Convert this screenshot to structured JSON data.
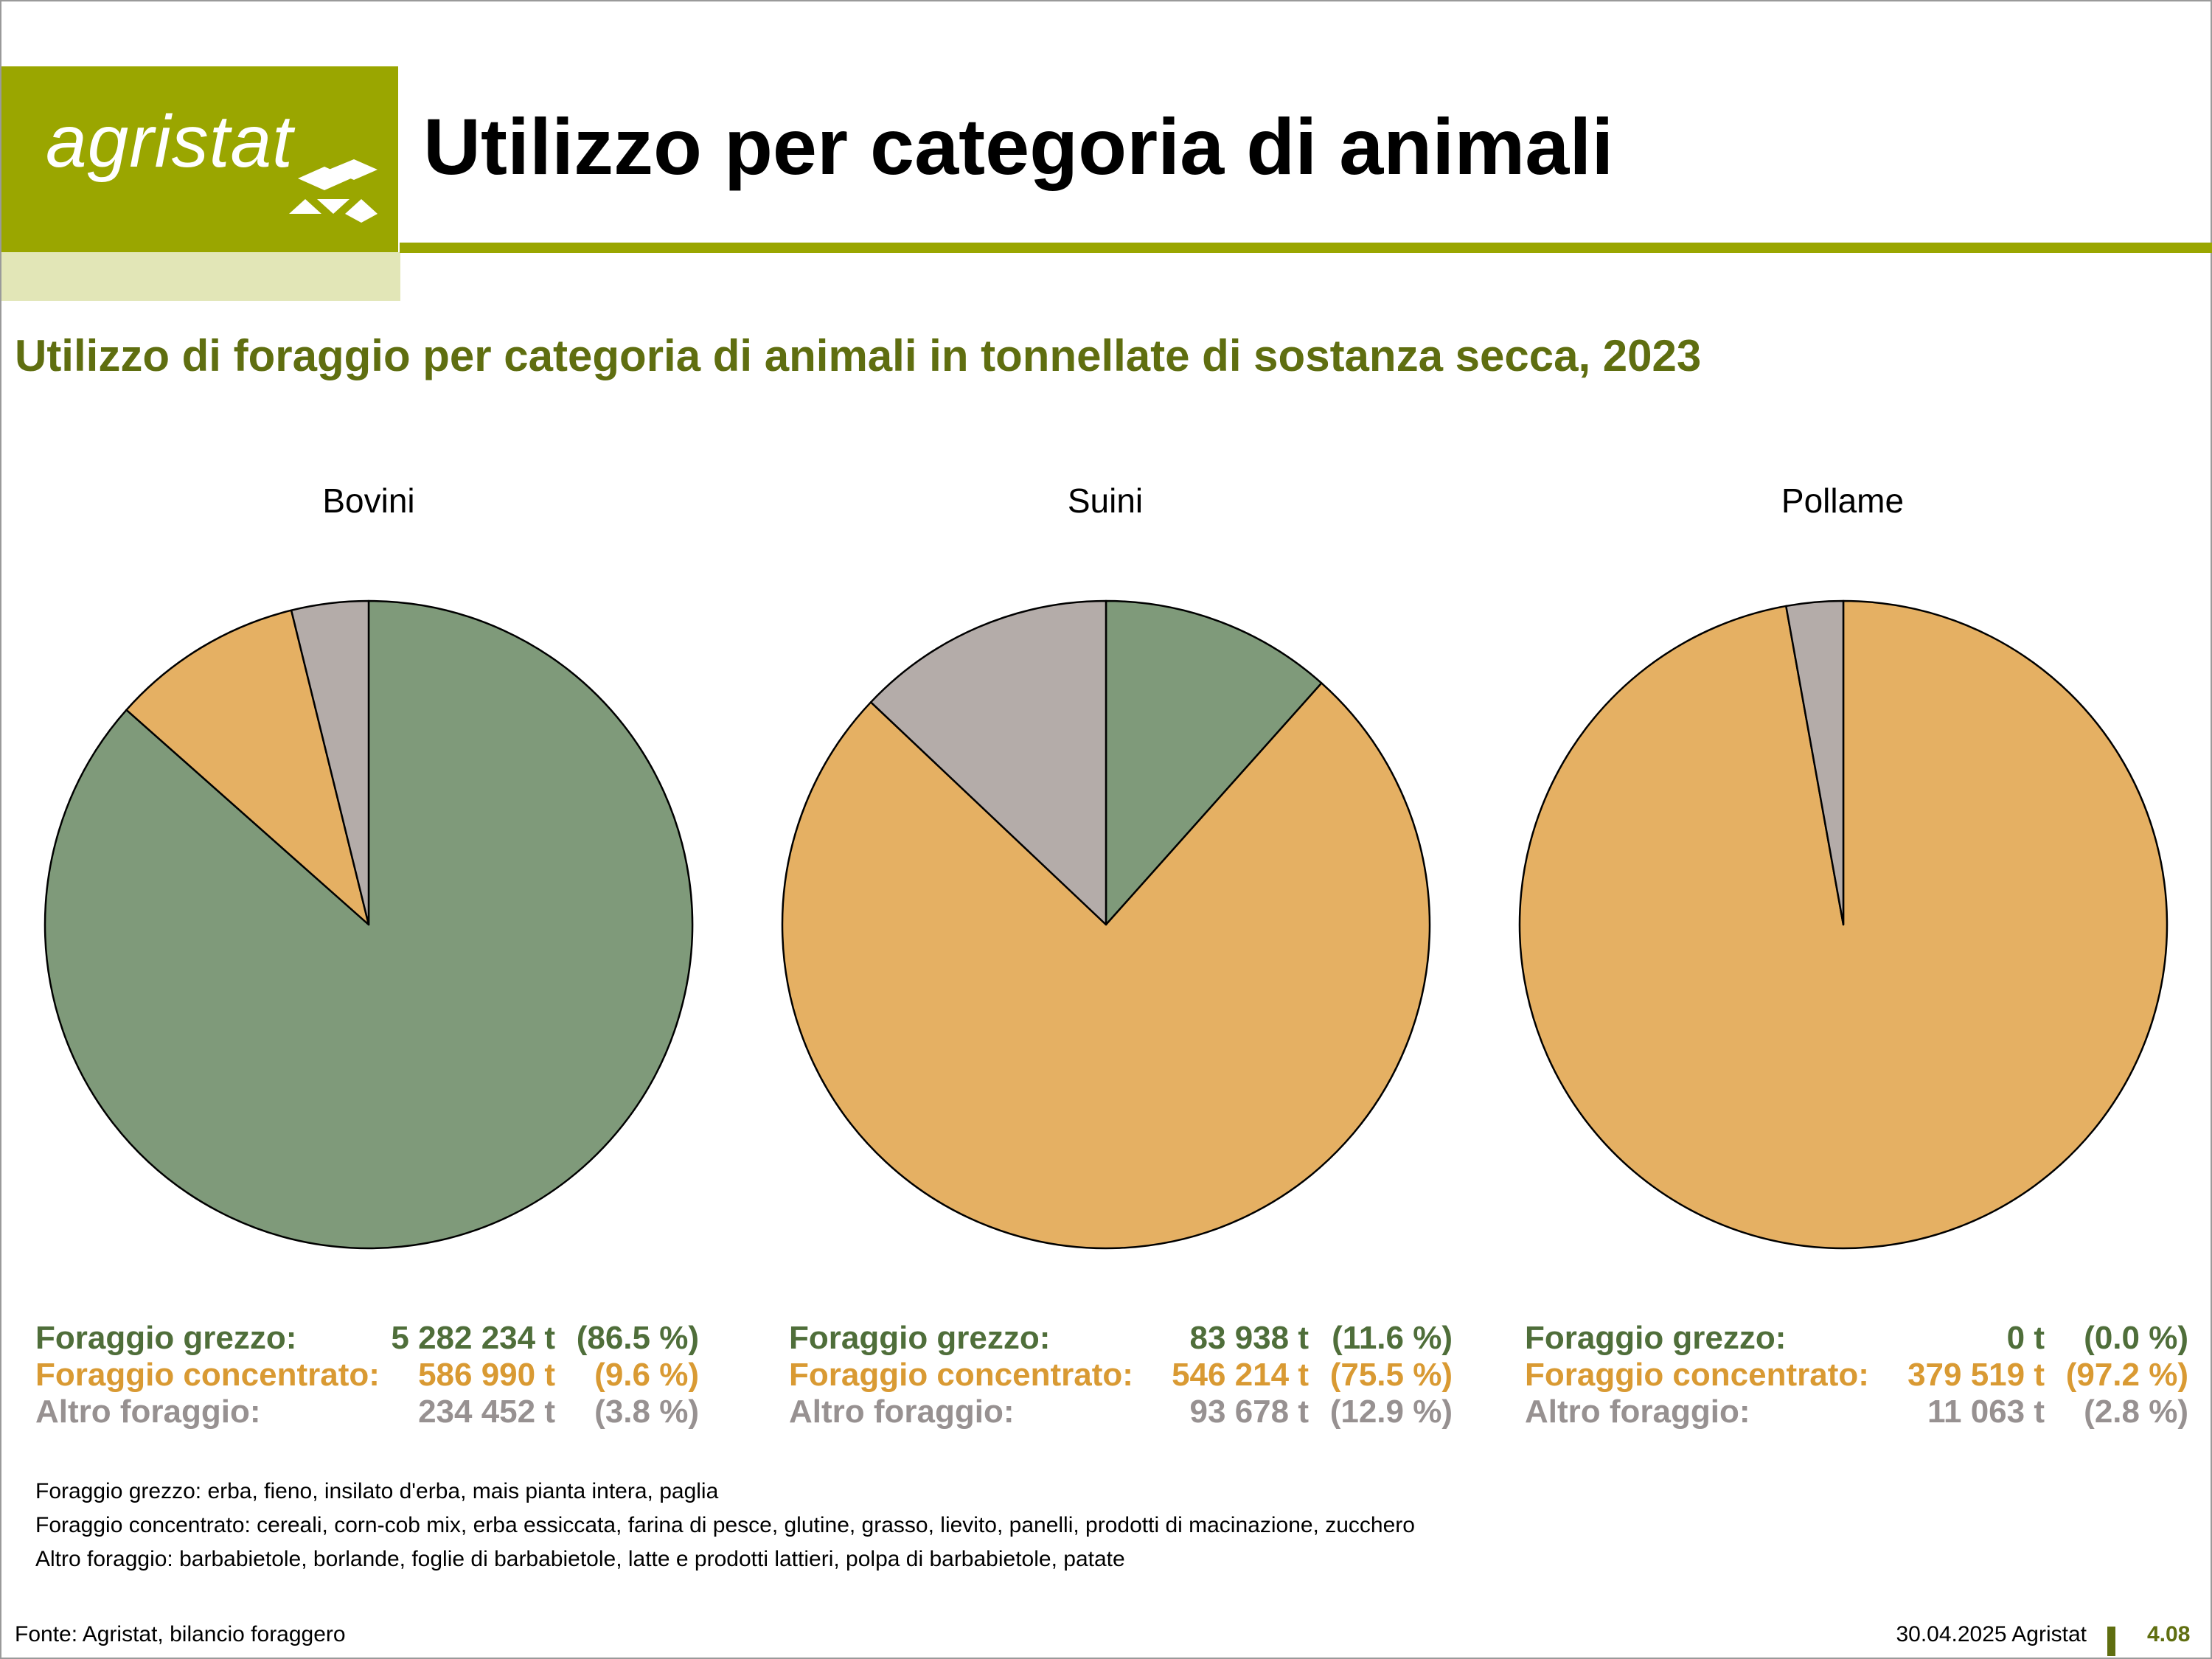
{
  "header": {
    "logo_text": "agristat",
    "title": "Utilizzo per categoria di animali",
    "brand_color": "#9aa600"
  },
  "subtitle": "Utilizzo di foraggio per categoria di animali in tonnellate di sostanza secca, 2023",
  "colors": {
    "Foraggio grezzo": "#7f9a7a",
    "Foraggio concentrato": "#e5b063",
    "Altro foraggio": "#b4aca9"
  },
  "chart_data": [
    {
      "type": "pie",
      "title": "Bovini",
      "labels": [
        "Foraggio grezzo",
        "Foraggio concentrato",
        "Altro foraggio"
      ],
      "values": [
        5282234,
        586990,
        234452
      ],
      "value_labels": [
        "5 282 234 t",
        "586 990 t",
        "234 452 t"
      ],
      "percent_labels": [
        "(86.5 %)",
        "(9.6 %)",
        "(3.8 %)"
      ]
    },
    {
      "type": "pie",
      "title": "Suini",
      "labels": [
        "Foraggio grezzo",
        "Foraggio concentrato",
        "Altro foraggio"
      ],
      "values": [
        83938,
        546214,
        93678
      ],
      "value_labels": [
        "83 938 t",
        "546 214 t",
        "93 678 t"
      ],
      "percent_labels": [
        "(11.6 %)",
        "(75.5 %)",
        "(12.9 %)"
      ]
    },
    {
      "type": "pie",
      "title": "Pollame",
      "labels": [
        "Foraggio grezzo",
        "Foraggio concentrato",
        "Altro foraggio"
      ],
      "values": [
        0,
        379519,
        11063
      ],
      "value_labels": [
        "0 t",
        "379 519 t",
        "11 063 t"
      ],
      "percent_labels": [
        "(0.0 %)",
        "(97.2 %)",
        "(2.8 %)"
      ]
    }
  ],
  "legend_labels": [
    "Foraggio grezzo:",
    "Foraggio concentrato:",
    "Altro foraggio:"
  ],
  "notes": [
    "Foraggio grezzo: erba, fieno, insilato d'erba, mais pianta intera, paglia",
    "Foraggio concentrato: cereali, corn-cob mix, erba essiccata, farina di pesce, glutine, grasso, lievito, panelli, prodotti di macinazione, zucchero",
    "Altro foraggio: barbabietole, borlande, foglie di barbabietole, latte e prodotti lattieri, polpa di barbabietole, patate"
  ],
  "footer": {
    "source": "Fonte: Agristat, bilancio foraggero",
    "date": "30.04.2025 Agristat",
    "page_number": "4.08"
  }
}
